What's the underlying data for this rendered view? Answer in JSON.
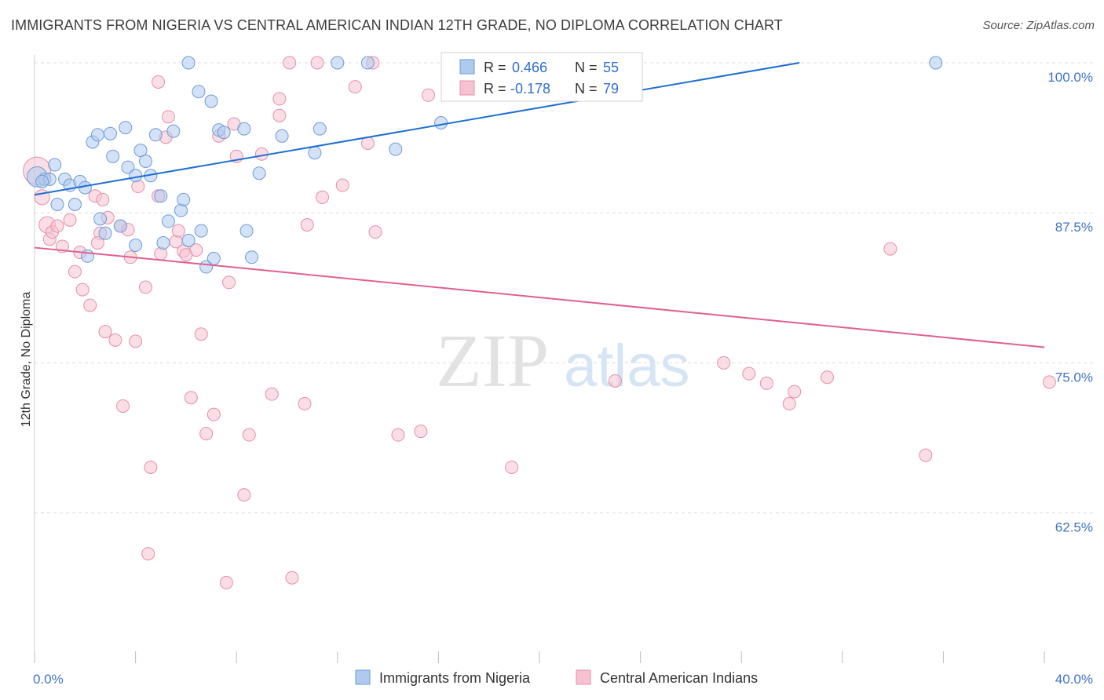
{
  "title": "IMMIGRANTS FROM NIGERIA VS CENTRAL AMERICAN INDIAN 12TH GRADE, NO DIPLOMA CORRELATION CHART",
  "source": "Source: ZipAtlas.com",
  "watermark": {
    "zip": "ZIP",
    "atlas": "atlas"
  },
  "colors": {
    "blue_fill": "#aecbee",
    "blue_stroke": "#6d9bd8",
    "blue_line": "#1f6fd1",
    "pink_fill": "#f6c2d2",
    "pink_stroke": "#e58fab",
    "pink_line": "#e0608c",
    "axis_text": "#3f74c9",
    "grid": "#dcdcdc"
  },
  "legend": {
    "r_label": "R =",
    "n_label": "N =",
    "rows": [
      {
        "series": "blue",
        "r": "0.466",
        "n": "55"
      },
      {
        "series": "pink",
        "r": "-0.178",
        "n": "79"
      }
    ]
  },
  "bottom_legend": [
    "Immigrants from Nigeria",
    "Central American Indians"
  ],
  "chart_data": {
    "type": "scatter",
    "title": "IMMIGRANTS FROM NIGERIA VS CENTRAL AMERICAN INDIAN 12TH GRADE, NO DIPLOMA CORRELATION CHART",
    "xlabel": "",
    "ylabel": "12th Grade, No Diploma",
    "xlim": [
      0,
      40
    ],
    "ylim": [
      50,
      101.2
    ],
    "x_tick_labels": [
      "0.0%",
      "40.0%"
    ],
    "y_ticks": [
      62.5,
      75.0,
      87.5,
      100.0
    ],
    "y_tick_labels": [
      "62.5%",
      "75.0%",
      "87.5%",
      "100.0%"
    ],
    "grid": true,
    "legend_position": "top-center",
    "series": [
      {
        "name": "Immigrants from Nigeria",
        "color": "blue",
        "trend": {
          "x": [
            0,
            30.3
          ],
          "y": [
            89.0,
            100.0
          ]
        },
        "points": [
          [
            0.1,
            90.5,
            1.6
          ],
          [
            0.4,
            90.3,
            1
          ],
          [
            0.6,
            90.3,
            1
          ],
          [
            0.8,
            91.5,
            1
          ],
          [
            1.2,
            90.3,
            1
          ],
          [
            1.4,
            89.8,
            1
          ],
          [
            0.9,
            88.2,
            1
          ],
          [
            1.6,
            88.2,
            1
          ],
          [
            1.8,
            90.1,
            1
          ],
          [
            2.0,
            89.6,
            1
          ],
          [
            2.1,
            83.9,
            1
          ],
          [
            2.3,
            93.4,
            1
          ],
          [
            2.5,
            94.0,
            1
          ],
          [
            2.6,
            87.0,
            1
          ],
          [
            2.8,
            85.8,
            1
          ],
          [
            3.0,
            94.1,
            1
          ],
          [
            3.1,
            92.2,
            1
          ],
          [
            3.4,
            86.4,
            1
          ],
          [
            3.6,
            94.6,
            1
          ],
          [
            3.7,
            91.3,
            1
          ],
          [
            4.0,
            84.8,
            1
          ],
          [
            4.0,
            90.6,
            1
          ],
          [
            4.2,
            92.7,
            1
          ],
          [
            4.4,
            91.8,
            1
          ],
          [
            4.6,
            90.6,
            1
          ],
          [
            4.8,
            94.0,
            1
          ],
          [
            5.0,
            88.9,
            1
          ],
          [
            5.1,
            85.0,
            1
          ],
          [
            5.3,
            86.8,
            1
          ],
          [
            5.5,
            94.3,
            1
          ],
          [
            5.8,
            87.7,
            1
          ],
          [
            5.9,
            88.6,
            1
          ],
          [
            6.1,
            85.2,
            1
          ],
          [
            6.5,
            97.6,
            1
          ],
          [
            6.6,
            86.0,
            1
          ],
          [
            6.8,
            83.0,
            1
          ],
          [
            7.0,
            96.8,
            1
          ],
          [
            7.1,
            83.7,
            1
          ],
          [
            7.3,
            94.4,
            1
          ],
          [
            7.5,
            94.2,
            1
          ],
          [
            8.3,
            94.5,
            1
          ],
          [
            8.4,
            86.0,
            1
          ],
          [
            8.6,
            83.8,
            1
          ],
          [
            8.9,
            90.8,
            1
          ],
          [
            9.8,
            93.9,
            1
          ],
          [
            11.1,
            92.5,
            1
          ],
          [
            11.3,
            94.5,
            1
          ],
          [
            12.0,
            100.0,
            1
          ],
          [
            13.2,
            100.0,
            1
          ],
          [
            14.3,
            92.8,
            1
          ],
          [
            16.1,
            95.0,
            1
          ],
          [
            16.7,
            100.0,
            1
          ],
          [
            35.7,
            100.0,
            1
          ],
          [
            6.1,
            100.0,
            1
          ],
          [
            0.3,
            90.1,
            1
          ]
        ]
      },
      {
        "name": "Central American Indians",
        "color": "pink",
        "trend": {
          "x": [
            0,
            40
          ],
          "y": [
            84.6,
            76.3
          ]
        },
        "points": [
          [
            0.1,
            91.0,
            2.2
          ],
          [
            0.3,
            88.8,
            1.2
          ],
          [
            0.5,
            86.5,
            1.3
          ],
          [
            0.6,
            85.3,
            1
          ],
          [
            0.7,
            85.9,
            1
          ],
          [
            0.9,
            86.4,
            1
          ],
          [
            1.1,
            84.7,
            1
          ],
          [
            1.4,
            86.9,
            1
          ],
          [
            1.6,
            82.6,
            1
          ],
          [
            1.8,
            84.2,
            1
          ],
          [
            1.9,
            81.1,
            1
          ],
          [
            2.2,
            79.8,
            1
          ],
          [
            2.4,
            88.9,
            1
          ],
          [
            2.6,
            85.8,
            1
          ],
          [
            2.7,
            88.6,
            1
          ],
          [
            2.8,
            77.6,
            1
          ],
          [
            2.9,
            87.1,
            1
          ],
          [
            3.2,
            76.9,
            1
          ],
          [
            3.4,
            86.4,
            1
          ],
          [
            3.5,
            71.4,
            1
          ],
          [
            3.7,
            86.1,
            1
          ],
          [
            3.8,
            83.8,
            1
          ],
          [
            4.0,
            76.8,
            1
          ],
          [
            4.1,
            89.7,
            1
          ],
          [
            4.4,
            81.3,
            1
          ],
          [
            4.5,
            59.1,
            1
          ],
          [
            4.6,
            66.3,
            1
          ],
          [
            4.9,
            88.9,
            1
          ],
          [
            5.0,
            84.1,
            1
          ],
          [
            5.2,
            93.8,
            1
          ],
          [
            5.3,
            95.5,
            1
          ],
          [
            5.6,
            85.1,
            1
          ],
          [
            5.7,
            86.0,
            1
          ],
          [
            5.9,
            84.3,
            1
          ],
          [
            6.2,
            72.1,
            1
          ],
          [
            6.4,
            84.4,
            1
          ],
          [
            6.6,
            77.4,
            1
          ],
          [
            6.8,
            69.1,
            1
          ],
          [
            7.1,
            70.7,
            1
          ],
          [
            7.3,
            93.9,
            1
          ],
          [
            7.6,
            56.7,
            1
          ],
          [
            7.7,
            81.7,
            1
          ],
          [
            7.9,
            94.9,
            1
          ],
          [
            8.0,
            92.2,
            1
          ],
          [
            8.3,
            64.0,
            1
          ],
          [
            8.5,
            69.0,
            1
          ],
          [
            9.0,
            92.4,
            1
          ],
          [
            9.4,
            72.4,
            1
          ],
          [
            9.7,
            95.6,
            1
          ],
          [
            10.1,
            100.0,
            1
          ],
          [
            10.2,
            57.1,
            1
          ],
          [
            10.7,
            71.6,
            1
          ],
          [
            10.8,
            86.5,
            1
          ],
          [
            11.2,
            100.0,
            1
          ],
          [
            11.4,
            88.8,
            1
          ],
          [
            12.2,
            89.8,
            1
          ],
          [
            12.7,
            98.0,
            1
          ],
          [
            13.4,
            100.0,
            1
          ],
          [
            13.5,
            85.9,
            1
          ],
          [
            14.4,
            69.0,
            1
          ],
          [
            15.3,
            69.3,
            1
          ],
          [
            15.6,
            97.3,
            1
          ],
          [
            18.9,
            66.3,
            1
          ],
          [
            22.2,
            100.0,
            1
          ],
          [
            23.0,
            73.5,
            1
          ],
          [
            27.3,
            75.0,
            1
          ],
          [
            28.3,
            74.1,
            1
          ],
          [
            29.0,
            73.3,
            1
          ],
          [
            29.9,
            71.6,
            1
          ],
          [
            30.1,
            72.6,
            1
          ],
          [
            31.4,
            73.8,
            1
          ],
          [
            33.9,
            84.5,
            1
          ],
          [
            35.3,
            67.3,
            1
          ],
          [
            40.2,
            73.4,
            1
          ],
          [
            4.9,
            98.4,
            1
          ],
          [
            9.7,
            97.0,
            1
          ],
          [
            13.2,
            93.3,
            1
          ],
          [
            2.5,
            85.0,
            1
          ],
          [
            6.0,
            84.0,
            1
          ]
        ]
      }
    ]
  }
}
